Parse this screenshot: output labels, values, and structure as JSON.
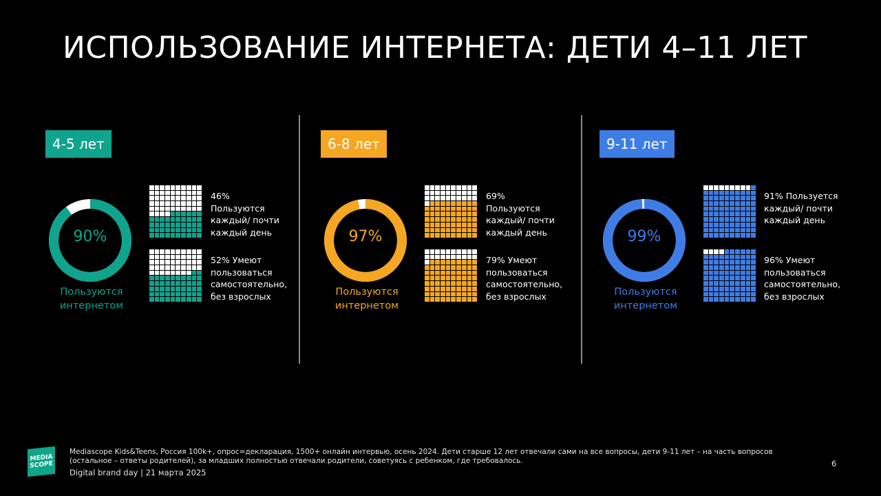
{
  "title": "ИСПОЛЬЗОВАНИЕ ИНТЕРНЕТА: ДЕТИ 4–11 ЛЕТ",
  "colors": {
    "teal": "#10a38d",
    "orange": "#f5a623",
    "blue": "#3f7de6",
    "empty": "#ffffff",
    "background": "#000000"
  },
  "chart_data": [
    {
      "type": "pie",
      "group": "4-5 лет",
      "accent": "#10a38d",
      "donut": {
        "value": 90,
        "label": "90%",
        "caption_line1": "Пользуются",
        "caption_line2": "интернетом"
      },
      "waffles": [
        {
          "value": 46,
          "line1": "46%",
          "lines": [
            "Пользуются",
            "каждый/ почти",
            "каждый день"
          ]
        },
        {
          "value": 52,
          "line1": "52% Умеют",
          "lines": [
            "пользоваться",
            "самостоятельно,",
            "без взрослых"
          ]
        }
      ]
    },
    {
      "type": "pie",
      "group": "6-8 лет",
      "accent": "#f5a623",
      "donut": {
        "value": 97,
        "label": "97%",
        "caption_line1": "Пользуются",
        "caption_line2": "интернетом"
      },
      "waffles": [
        {
          "value": 69,
          "line1": "69%",
          "lines": [
            "Пользуются",
            "каждый/ почти",
            "каждый день"
          ]
        },
        {
          "value": 79,
          "line1": "79% Умеют",
          "lines": [
            "пользоваться",
            "самостоятельно,",
            "без взрослых"
          ]
        }
      ]
    },
    {
      "type": "pie",
      "group": "9-11 лет",
      "accent": "#3f7de6",
      "donut": {
        "value": 99,
        "label": "99%",
        "caption_line1": "Пользуются",
        "caption_line2": "интернетом"
      },
      "waffles": [
        {
          "value": 91,
          "line1": "91% Пользуется",
          "lines": [
            "каждый/ почти",
            "каждый день"
          ]
        },
        {
          "value": 96,
          "line1": "96% Умеют",
          "lines": [
            "пользоваться",
            "самостоятельно,",
            "без взрослых"
          ]
        }
      ]
    }
  ],
  "footer": {
    "logo_line1": "MEDIA",
    "logo_line2": "SCOPE",
    "note": "Mediascope Kids&Teens, Россия 100k+, опрос=декларация, 1500+ онлайн интервью, осень 2024. Дети старше 12 лет отвечали сами на все вопросы, дети 9-11 лет – на часть вопросов (остальное – ответы родителей), за младших полностью отвечали родители, советуясь с ребенком, где требовалось.",
    "event": "Digital brand day |  21 марта 2025",
    "page": "6"
  }
}
